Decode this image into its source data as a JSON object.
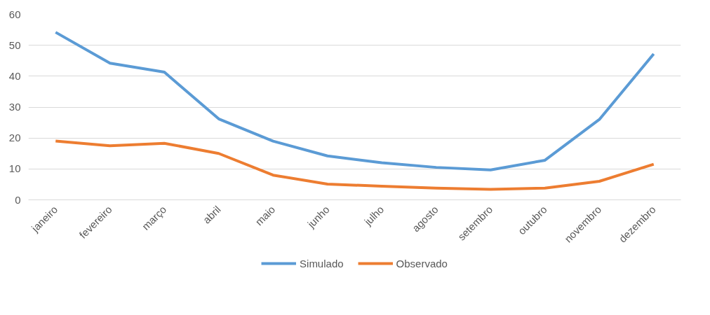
{
  "chart_data": {
    "type": "line",
    "categories": [
      "janeiro",
      "fevereiro",
      "março",
      "abril",
      "maio",
      "junho",
      "julho",
      "agosto",
      "setembro",
      "outubro",
      "novembro",
      "dezembro"
    ],
    "series": [
      {
        "name": "Simulado",
        "color": "#5b9bd5",
        "values": [
          54.2,
          44.2,
          41.3,
          26.2,
          19,
          14.2,
          12,
          10.5,
          9.7,
          12.8,
          26,
          47.2
        ]
      },
      {
        "name": "Observado",
        "color": "#ed7d31",
        "values": [
          19,
          17.5,
          18.3,
          15,
          8,
          5.1,
          4.4,
          3.8,
          3.4,
          3.8,
          6,
          11.5
        ]
      }
    ],
    "ylim": [
      0,
      60
    ],
    "yticks": [
      0,
      10,
      20,
      30,
      40,
      50,
      60
    ],
    "grid": "y",
    "legend": "bottom",
    "marker": "none",
    "line_style": "solid"
  }
}
